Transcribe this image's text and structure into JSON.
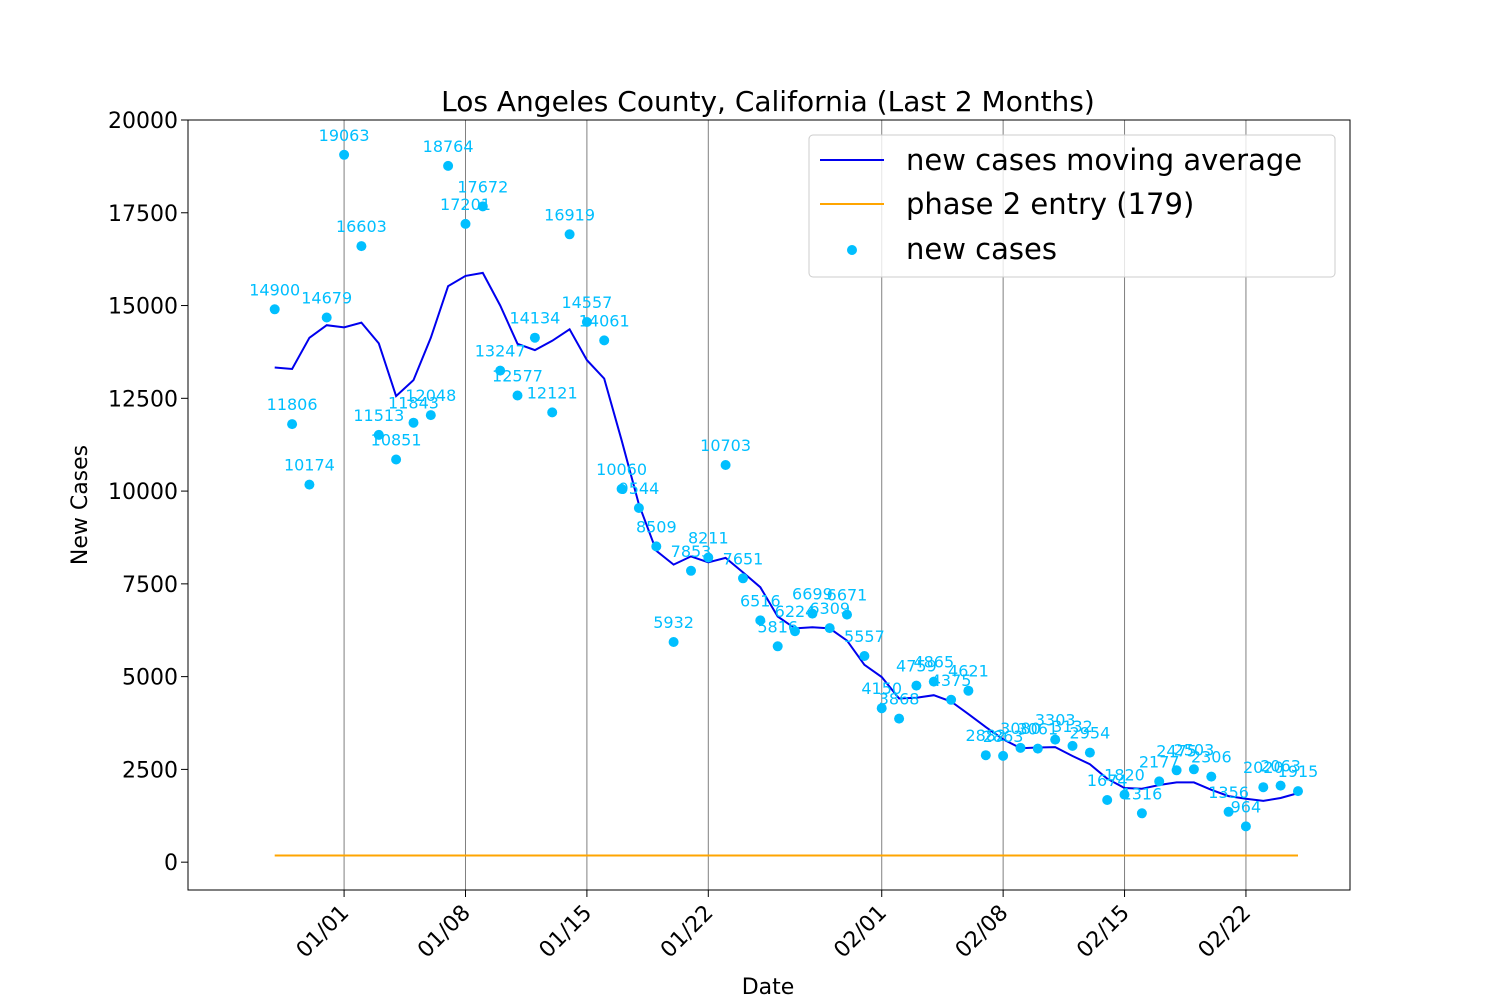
{
  "chart_data": {
    "type": "line",
    "title": "Los Angeles County, California (Last 2 Months)",
    "xlabel": "Date",
    "ylabel": "New Cases",
    "x_ticks": [
      "01/01",
      "01/08",
      "01/15",
      "01/22",
      "02/01",
      "02/08",
      "02/15",
      "02/22"
    ],
    "x_tick_dates": [
      "2021-01-01",
      "2021-01-08",
      "2021-01-15",
      "2021-01-22",
      "2021-02-01",
      "2021-02-08",
      "2021-02-15",
      "2021-02-22"
    ],
    "y_ticks": [
      "0",
      "2500",
      "5000",
      "7500",
      "10000",
      "12500",
      "15000",
      "17500",
      "20000"
    ],
    "ylim": [
      -750,
      20000
    ],
    "xlim": [
      "2020-12-23",
      "2021-02-28"
    ],
    "grid": "vertical lines at x ticks",
    "legend_placement": "top-right",
    "colors": {
      "moving_average": "#0000ee",
      "phase2": "#ffa500",
      "new_cases": "#00bfff"
    },
    "x": [
      "2020-12-28",
      "2020-12-29",
      "2020-12-30",
      "2020-12-31",
      "2021-01-01",
      "2021-01-02",
      "2021-01-03",
      "2021-01-04",
      "2021-01-05",
      "2021-01-06",
      "2021-01-07",
      "2021-01-08",
      "2021-01-09",
      "2021-01-10",
      "2021-01-11",
      "2021-01-12",
      "2021-01-13",
      "2021-01-14",
      "2021-01-15",
      "2021-01-16",
      "2021-01-17",
      "2021-01-18",
      "2021-01-19",
      "2021-01-20",
      "2021-01-21",
      "2021-01-22",
      "2021-01-23",
      "2021-01-24",
      "2021-01-25",
      "2021-01-26",
      "2021-01-27",
      "2021-01-28",
      "2021-01-29",
      "2021-01-30",
      "2021-01-31",
      "2021-02-01",
      "2021-02-02",
      "2021-02-03",
      "2021-02-04",
      "2021-02-05",
      "2021-02-06",
      "2021-02-07",
      "2021-02-08",
      "2021-02-09",
      "2021-02-10",
      "2021-02-11",
      "2021-02-12",
      "2021-02-13",
      "2021-02-14",
      "2021-02-15",
      "2021-02-16",
      "2021-02-17",
      "2021-02-18",
      "2021-02-19",
      "2021-02-20",
      "2021-02-21",
      "2021-02-22",
      "2021-02-23",
      "2021-02-24",
      "2021-02-25"
    ],
    "series": [
      {
        "name": "new cases moving average",
        "type": "line",
        "values": [
          13330,
          13290,
          14130,
          14470,
          14410,
          14540,
          13980,
          12560,
          12990,
          14130,
          15520,
          15800,
          15880,
          15000,
          13970,
          13800,
          14050,
          14360,
          13530,
          13030,
          11370,
          9640,
          8390,
          8020,
          8240,
          8080,
          8200,
          7810,
          7410,
          6620,
          6300,
          6330,
          6300,
          5970,
          5320,
          4990,
          4410,
          4430,
          4500,
          4330,
          3990,
          3640,
          3310,
          3070,
          3090,
          3100,
          2860,
          2640,
          2250,
          2000,
          1980,
          2080,
          2150,
          2150,
          1950,
          1780,
          1710,
          1650,
          1730,
          1860
        ]
      },
      {
        "name": "phase 2 entry (179)",
        "type": "line",
        "values": [
          179,
          179,
          179,
          179,
          179,
          179,
          179,
          179,
          179,
          179,
          179,
          179,
          179,
          179,
          179,
          179,
          179,
          179,
          179,
          179,
          179,
          179,
          179,
          179,
          179,
          179,
          179,
          179,
          179,
          179,
          179,
          179,
          179,
          179,
          179,
          179,
          179,
          179,
          179,
          179,
          179,
          179,
          179,
          179,
          179,
          179,
          179,
          179,
          179,
          179,
          179,
          179,
          179,
          179,
          179,
          179,
          179,
          179,
          179,
          179
        ]
      },
      {
        "name": "new cases",
        "type": "scatter",
        "values": [
          14900,
          11806,
          10174,
          14679,
          19063,
          16603,
          11513,
          10851,
          11843,
          12048,
          18764,
          17201,
          17672,
          13247,
          12577,
          14134,
          12121,
          16919,
          14557,
          14061,
          10060,
          9544,
          8509,
          5932,
          7853,
          8211,
          10703,
          7651,
          6516,
          5816,
          6224,
          6699,
          6309,
          6671,
          5557,
          4150,
          3868,
          4759,
          4865,
          4375,
          4621,
          2882,
          2863,
          3080,
          3061,
          3303,
          3132,
          2954,
          1674,
          1820,
          1316,
          2177,
          2475,
          2503,
          2306,
          1356,
          964,
          2020,
          2063,
          1915
        ]
      }
    ]
  }
}
